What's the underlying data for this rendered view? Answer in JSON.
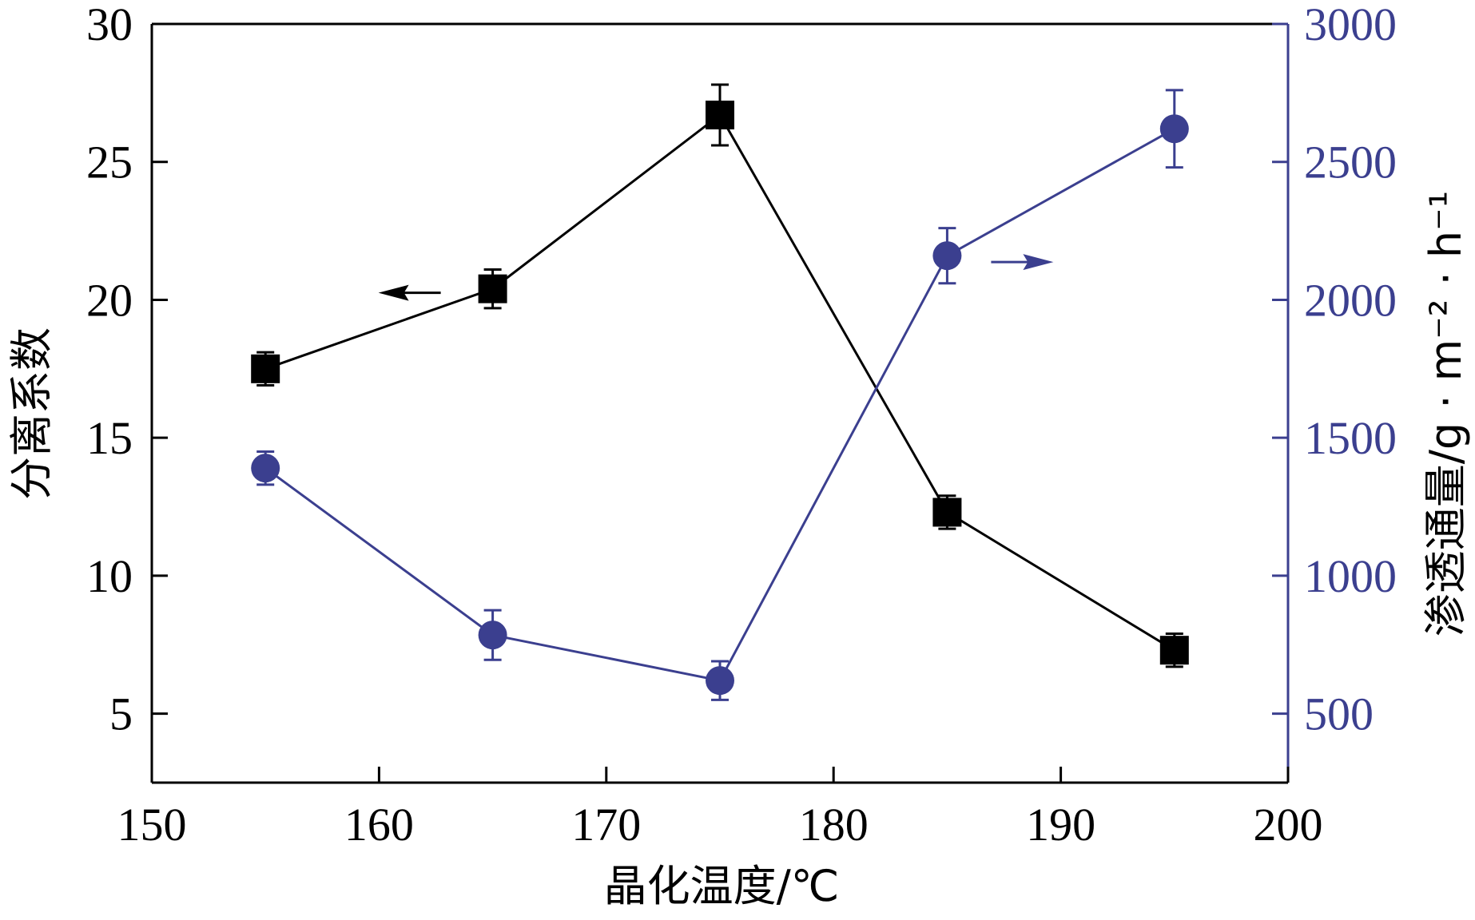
{
  "chart_data": {
    "type": "line",
    "xlabel": "晶化温度/℃",
    "ylabel_left": "分离系数",
    "ylabel_right": "渗透通量/g · m⁻² · h⁻¹",
    "xlim": [
      150,
      200
    ],
    "ylim_left": [
      2.5,
      30
    ],
    "ylim_right": [
      250,
      3000
    ],
    "x_ticks": [
      "150",
      "160",
      "170",
      "180",
      "190",
      "200"
    ],
    "y_left_ticks": [
      "5",
      "10",
      "15",
      "20",
      "25",
      "30"
    ],
    "y_right_ticks": [
      "500",
      "1000",
      "1500",
      "2000",
      "2500",
      "3000"
    ],
    "x": [
      155,
      165,
      175,
      185,
      195
    ],
    "series": [
      {
        "axis": "left",
        "marker": "square",
        "color": "#000000",
        "values": [
          17.5,
          20.4,
          26.7,
          12.3,
          7.3
        ],
        "errors": [
          0.6,
          0.7,
          1.1,
          0.6,
          0.6
        ],
        "arrow": "left"
      },
      {
        "axis": "right",
        "marker": "circle",
        "color": "#3b3f8f",
        "values": [
          1390,
          785,
          620,
          2160,
          2620
        ],
        "errors": [
          60,
          90,
          70,
          100,
          140
        ],
        "arrow": "right"
      }
    ],
    "right_axis_color": "#3b3f8f",
    "grid": false
  }
}
